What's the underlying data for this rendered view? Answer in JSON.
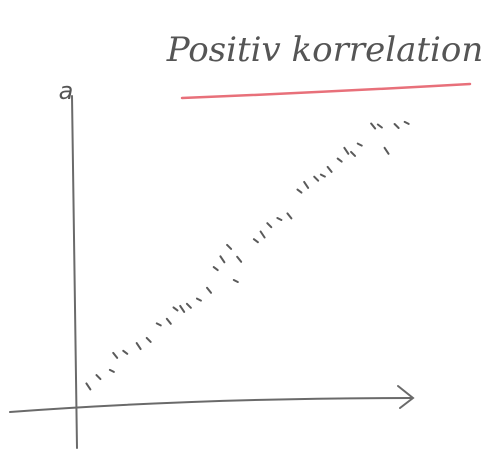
{
  "chart_data": {
    "type": "scatter",
    "title": "Positiv korrelation",
    "y_label": "a",
    "color": "#5a5a5a",
    "title_underline_color": "#e8707a",
    "xlim": [
      0,
      10
    ],
    "ylim": [
      0,
      10
    ],
    "x": [
      0.4,
      0.7,
      1.1,
      1.2,
      1.5,
      1.9,
      2.2,
      2.5,
      2.8,
      3.0,
      3.2,
      3.4,
      3.7,
      4.0,
      4.2,
      4.4,
      4.6,
      4.8,
      4.9,
      5.4,
      5.6,
      5.8,
      6.1,
      6.4,
      6.7,
      6.9,
      7.2,
      7.4,
      7.6,
      7.9,
      8.1,
      8.3,
      8.5,
      8.9,
      9.1,
      9.3,
      9.6,
      9.9
    ],
    "y": [
      0.6,
      0.9,
      1.1,
      1.6,
      1.7,
      1.9,
      2.1,
      2.6,
      2.7,
      3.1,
      3.1,
      3.2,
      3.4,
      3.7,
      4.4,
      4.7,
      5.1,
      4.0,
      4.7,
      5.3,
      5.5,
      5.8,
      6.0,
      6.1,
      6.9,
      7.1,
      7.3,
      7.4,
      7.6,
      7.9,
      8.2,
      8.1,
      8.4,
      9.0,
      9.0,
      8.2,
      9.0,
      9.1
    ]
  }
}
